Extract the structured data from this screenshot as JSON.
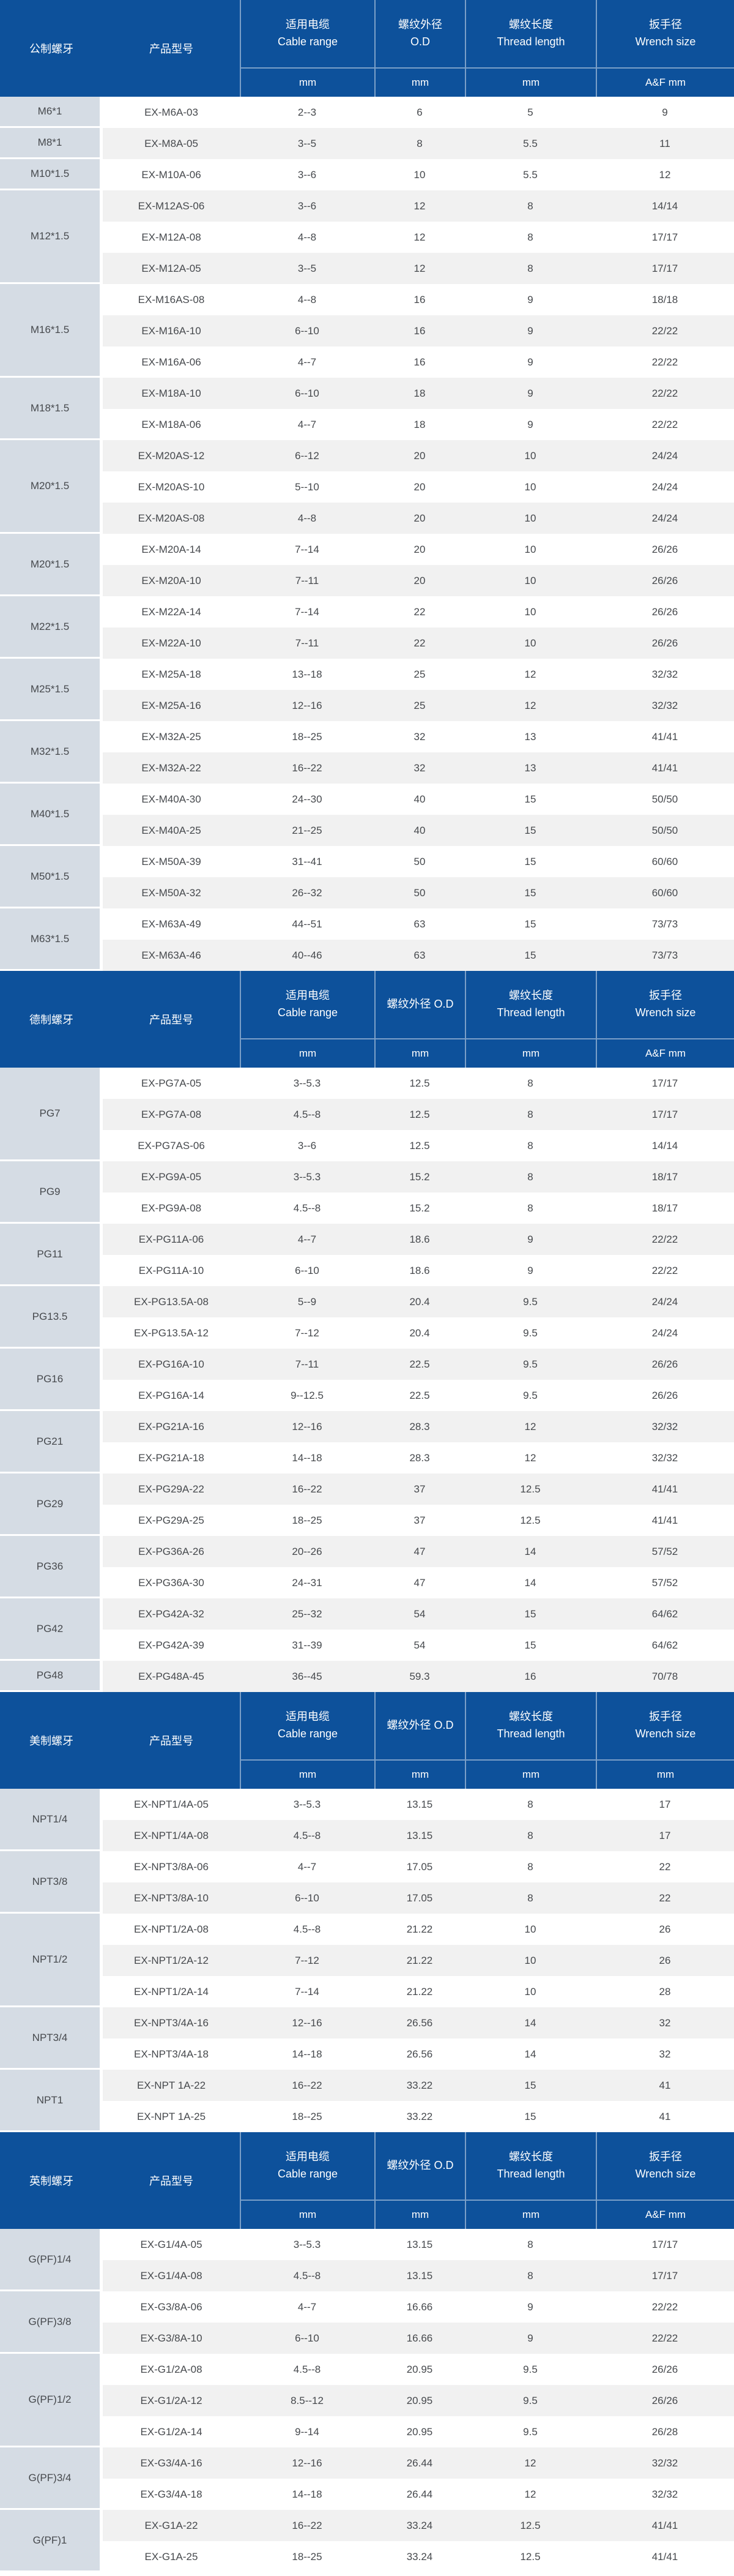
{
  "colors": {
    "header_bg": "#0D519B",
    "thread_cell_bg": "#D5DCE4",
    "row_alt_bg": "#F1F1F1",
    "header_text": "#FFFFFF",
    "body_text": "#46494D"
  },
  "table": {
    "columns": {
      "product": "产品型号",
      "cable_cn": "适用电缆",
      "cable_en": "Cable range",
      "od_cn": "螺纹外径",
      "od_en": "O.D",
      "od_inline": "螺纹外径 O.D",
      "length_cn": "螺纹长度",
      "length_en": "Thread length",
      "wrench_cn": "扳手径",
      "wrench_en": "Wrench size"
    },
    "sections": [
      {
        "thread_label": "公制螺牙",
        "od_layout": "stacked",
        "units": [
          "mm",
          "mm",
          "mm",
          "A&F mm"
        ],
        "groups": [
          {
            "thread": "M6*1",
            "rows": [
              [
                "EX-M6A-03",
                "2--3",
                "6",
                "5",
                "9"
              ]
            ]
          },
          {
            "thread": "M8*1",
            "rows": [
              [
                "EX-M8A-05",
                "3--5",
                "8",
                "5.5",
                "11"
              ]
            ]
          },
          {
            "thread": "M10*1.5",
            "rows": [
              [
                "EX-M10A-06",
                "3--6",
                "10",
                "5.5",
                "12"
              ]
            ]
          },
          {
            "thread": "M12*1.5",
            "rows": [
              [
                "EX-M12AS-06",
                "3--6",
                "12",
                "8",
                "14/14"
              ],
              [
                "EX-M12A-08",
                "4--8",
                "12",
                "8",
                "17/17"
              ],
              [
                "EX-M12A-05",
                "3--5",
                "12",
                "8",
                "17/17"
              ]
            ]
          },
          {
            "thread": "M16*1.5",
            "rows": [
              [
                "EX-M16AS-08",
                "4--8",
                "16",
                "9",
                "18/18"
              ],
              [
                "EX-M16A-10",
                "6--10",
                "16",
                "9",
                "22/22"
              ],
              [
                "EX-M16A-06",
                "4--7",
                "16",
                "9",
                "22/22"
              ]
            ]
          },
          {
            "thread": "M18*1.5",
            "rows": [
              [
                "EX-M18A-10",
                "6--10",
                "18",
                "9",
                "22/22"
              ],
              [
                "EX-M18A-06",
                "4--7",
                "18",
                "9",
                "22/22"
              ]
            ]
          },
          {
            "thread": "M20*1.5",
            "rows": [
              [
                "EX-M20AS-12",
                "6--12",
                "20",
                "10",
                "24/24"
              ],
              [
                "EX-M20AS-10",
                "5--10",
                "20",
                "10",
                "24/24"
              ],
              [
                "EX-M20AS-08",
                "4--8",
                "20",
                "10",
                "24/24"
              ]
            ]
          },
          {
            "thread": "M20*1.5",
            "rows": [
              [
                "EX-M20A-14",
                "7--14",
                "20",
                "10",
                "26/26"
              ],
              [
                "EX-M20A-10",
                "7--11",
                "20",
                "10",
                "26/26"
              ]
            ]
          },
          {
            "thread": "M22*1.5",
            "rows": [
              [
                "EX-M22A-14",
                "7--14",
                "22",
                "10",
                "26/26"
              ],
              [
                "EX-M22A-10",
                "7--11",
                "22",
                "10",
                "26/26"
              ]
            ]
          },
          {
            "thread": "M25*1.5",
            "rows": [
              [
                "EX-M25A-18",
                "13--18",
                "25",
                "12",
                "32/32"
              ],
              [
                "EX-M25A-16",
                "12--16",
                "25",
                "12",
                "32/32"
              ]
            ]
          },
          {
            "thread": "M32*1.5",
            "rows": [
              [
                "EX-M32A-25",
                "18--25",
                "32",
                "13",
                "41/41"
              ],
              [
                "EX-M32A-22",
                "16--22",
                "32",
                "13",
                "41/41"
              ]
            ]
          },
          {
            "thread": "M40*1.5",
            "rows": [
              [
                "EX-M40A-30",
                "24--30",
                "40",
                "15",
                "50/50"
              ],
              [
                "EX-M40A-25",
                "21--25",
                "40",
                "15",
                "50/50"
              ]
            ]
          },
          {
            "thread": "M50*1.5",
            "rows": [
              [
                "EX-M50A-39",
                "31--41",
                "50",
                "15",
                "60/60"
              ],
              [
                "EX-M50A-32",
                "26--32",
                "50",
                "15",
                "60/60"
              ]
            ]
          },
          {
            "thread": "M63*1.5",
            "rows": [
              [
                "EX-M63A-49",
                "44--51",
                "63",
                "15",
                "73/73"
              ],
              [
                "EX-M63A-46",
                "40--46",
                "63",
                "15",
                "73/73"
              ]
            ]
          }
        ]
      },
      {
        "thread_label": "德制螺牙",
        "od_layout": "inline",
        "units": [
          "mm",
          "mm",
          "mm",
          "A&F mm"
        ],
        "groups": [
          {
            "thread": "PG7",
            "rows": [
              [
                "EX-PG7A-05",
                "3--5.3",
                "12.5",
                "8",
                "17/17"
              ],
              [
                "EX-PG7A-08",
                "4.5--8",
                "12.5",
                "8",
                "17/17"
              ],
              [
                "EX-PG7AS-06",
                "3--6",
                "12.5",
                "8",
                "14/14"
              ]
            ]
          },
          {
            "thread": "PG9",
            "rows": [
              [
                "EX-PG9A-05",
                "3--5.3",
                "15.2",
                "8",
                "18/17"
              ],
              [
                "EX-PG9A-08",
                "4.5--8",
                "15.2",
                "8",
                "18/17"
              ]
            ]
          },
          {
            "thread": "PG11",
            "rows": [
              [
                "EX-PG11A-06",
                "4--7",
                "18.6",
                "9",
                "22/22"
              ],
              [
                "EX-PG11A-10",
                "6--10",
                "18.6",
                "9",
                "22/22"
              ]
            ]
          },
          {
            "thread": "PG13.5",
            "rows": [
              [
                "EX-PG13.5A-08",
                "5--9",
                "20.4",
                "9.5",
                "24/24"
              ],
              [
                "EX-PG13.5A-12",
                "7--12",
                "20.4",
                "9.5",
                "24/24"
              ]
            ]
          },
          {
            "thread": "PG16",
            "rows": [
              [
                "EX-PG16A-10",
                "7--11",
                "22.5",
                "9.5",
                "26/26"
              ],
              [
                "EX-PG16A-14",
                "9--12.5",
                "22.5",
                "9.5",
                "26/26"
              ]
            ]
          },
          {
            "thread": "PG21",
            "rows": [
              [
                "EX-PG21A-16",
                "12--16",
                "28.3",
                "12",
                "32/32"
              ],
              [
                "EX-PG21A-18",
                "14--18",
                "28.3",
                "12",
                "32/32"
              ]
            ]
          },
          {
            "thread": "PG29",
            "rows": [
              [
                "EX-PG29A-22",
                "16--22",
                "37",
                "12.5",
                "41/41"
              ],
              [
                "EX-PG29A-25",
                "18--25",
                "37",
                "12.5",
                "41/41"
              ]
            ]
          },
          {
            "thread": "PG36",
            "rows": [
              [
                "EX-PG36A-26",
                "20--26",
                "47",
                "14",
                "57/52"
              ],
              [
                "EX-PG36A-30",
                "24--31",
                "47",
                "14",
                "57/52"
              ]
            ]
          },
          {
            "thread": "PG42",
            "rows": [
              [
                "EX-PG42A-32",
                "25--32",
                "54",
                "15",
                "64/62"
              ],
              [
                "EX-PG42A-39",
                "31--39",
                "54",
                "15",
                "64/62"
              ]
            ]
          },
          {
            "thread": "PG48",
            "rows": [
              [
                "EX-PG48A-45",
                "36--45",
                "59.3",
                "16",
                "70/78"
              ]
            ]
          }
        ]
      },
      {
        "thread_label": "美制螺牙",
        "od_layout": "inline",
        "units": [
          "mm",
          "mm",
          "mm",
          "mm"
        ],
        "groups": [
          {
            "thread": "NPT1/4",
            "rows": [
              [
                "EX-NPT1/4A-05",
                "3--5.3",
                "13.15",
                "8",
                "17"
              ],
              [
                "EX-NPT1/4A-08",
                "4.5--8",
                "13.15",
                "8",
                "17"
              ]
            ]
          },
          {
            "thread": "NPT3/8",
            "rows": [
              [
                "EX-NPT3/8A-06",
                "4--7",
                "17.05",
                "8",
                "22"
              ],
              [
                "EX-NPT3/8A-10",
                "6--10",
                "17.05",
                "8",
                "22"
              ]
            ]
          },
          {
            "thread": "NPT1/2",
            "rows": [
              [
                "EX-NPT1/2A-08",
                "4.5--8",
                "21.22",
                "10",
                "26"
              ],
              [
                "EX-NPT1/2A-12",
                "7--12",
                "21.22",
                "10",
                "26"
              ],
              [
                "EX-NPT1/2A-14",
                "7--14",
                "21.22",
                "10",
                "28"
              ]
            ]
          },
          {
            "thread": "NPT3/4",
            "rows": [
              [
                "EX-NPT3/4A-16",
                "12--16",
                "26.56",
                "14",
                "32"
              ],
              [
                "EX-NPT3/4A-18",
                "14--18",
                "26.56",
                "14",
                "32"
              ]
            ]
          },
          {
            "thread": "NPT1",
            "rows": [
              [
                "EX-NPT 1A-22",
                "16--22",
                "33.22",
                "15",
                "41"
              ],
              [
                "EX-NPT 1A-25",
                "18--25",
                "33.22",
                "15",
                "41"
              ]
            ]
          }
        ]
      },
      {
        "thread_label": "英制螺牙",
        "od_layout": "inline",
        "units": [
          "mm",
          "mm",
          "mm",
          "A&F mm"
        ],
        "groups": [
          {
            "thread": "G(PF)1/4",
            "rows": [
              [
                "EX-G1/4A-05",
                "3--5.3",
                "13.15",
                "8",
                "17/17"
              ],
              [
                "EX-G1/4A-08",
                "4.5--8",
                "13.15",
                "8",
                "17/17"
              ]
            ]
          },
          {
            "thread": "G(PF)3/8",
            "rows": [
              [
                "EX-G3/8A-06",
                "4--7",
                "16.66",
                "9",
                "22/22"
              ],
              [
                "EX-G3/8A-10",
                "6--10",
                "16.66",
                "9",
                "22/22"
              ]
            ]
          },
          {
            "thread": "G(PF)1/2",
            "rows": [
              [
                "EX-G1/2A-08",
                "4.5--8",
                "20.95",
                "9.5",
                "26/26"
              ],
              [
                "EX-G1/2A-12",
                "8.5--12",
                "20.95",
                "9.5",
                "26/26"
              ],
              [
                "EX-G1/2A-14",
                "9--14",
                "20.95",
                "9.5",
                "26/28"
              ]
            ]
          },
          {
            "thread": "G(PF)3/4",
            "rows": [
              [
                "EX-G3/4A-16",
                "12--16",
                "26.44",
                "12",
                "32/32"
              ],
              [
                "EX-G3/4A-18",
                "14--18",
                "26.44",
                "12",
                "32/32"
              ]
            ]
          },
          {
            "thread": "G(PF)1",
            "rows": [
              [
                "EX-G1A-22",
                "16--22",
                "33.24",
                "12.5",
                "41/41"
              ],
              [
                "EX-G1A-25",
                "18--25",
                "33.24",
                "12.5",
                "41/41"
              ]
            ]
          }
        ]
      }
    ]
  }
}
